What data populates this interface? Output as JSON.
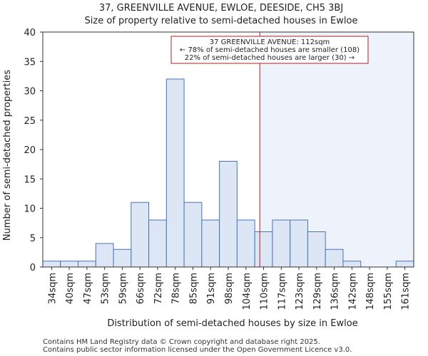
{
  "chart_data": {
    "type": "bar",
    "title": "37, GREENVILLE AVENUE, EWLOE, DEESIDE, CH5 3BJ",
    "subtitle": "Size of property relative to semi-detached houses in Ewloe",
    "xlabel": "Distribution of semi-detached houses by size in Ewloe",
    "ylabel": "Number of semi-detached properties",
    "categories": [
      "34sqm",
      "40sqm",
      "47sqm",
      "53sqm",
      "59sqm",
      "66sqm",
      "72sqm",
      "78sqm",
      "85sqm",
      "91sqm",
      "98sqm",
      "104sqm",
      "110sqm",
      "117sqm",
      "123sqm",
      "129sqm",
      "136sqm",
      "142sqm",
      "148sqm",
      "155sqm",
      "161sqm"
    ],
    "values": [
      1,
      1,
      1,
      4,
      3,
      11,
      8,
      32,
      11,
      8,
      18,
      8,
      6,
      8,
      8,
      6,
      3,
      1,
      0,
      0,
      1
    ],
    "ylim": [
      0,
      40
    ],
    "yticks": [
      0,
      5,
      10,
      15,
      20,
      25,
      30,
      35,
      40
    ],
    "marker_value": 112,
    "marker_label": "37 GREENVILLE AVENUE: 112sqm",
    "annotation_lines": [
      "← 78% of semi-detached houses are smaller (108)",
      "22% of semi-detached houses are larger (30) →"
    ],
    "colors": {
      "bar_fill": "#dce6f5",
      "bar_stroke": "#4a72b8",
      "highlight_fill": "#eef2fa",
      "marker_line": "#b22222",
      "annot_border": "#b22222"
    }
  },
  "footer": {
    "line1": "Contains HM Land Registry data © Crown copyright and database right 2025.",
    "line2": "Contains public sector information licensed under the Open Government Licence v3.0."
  }
}
